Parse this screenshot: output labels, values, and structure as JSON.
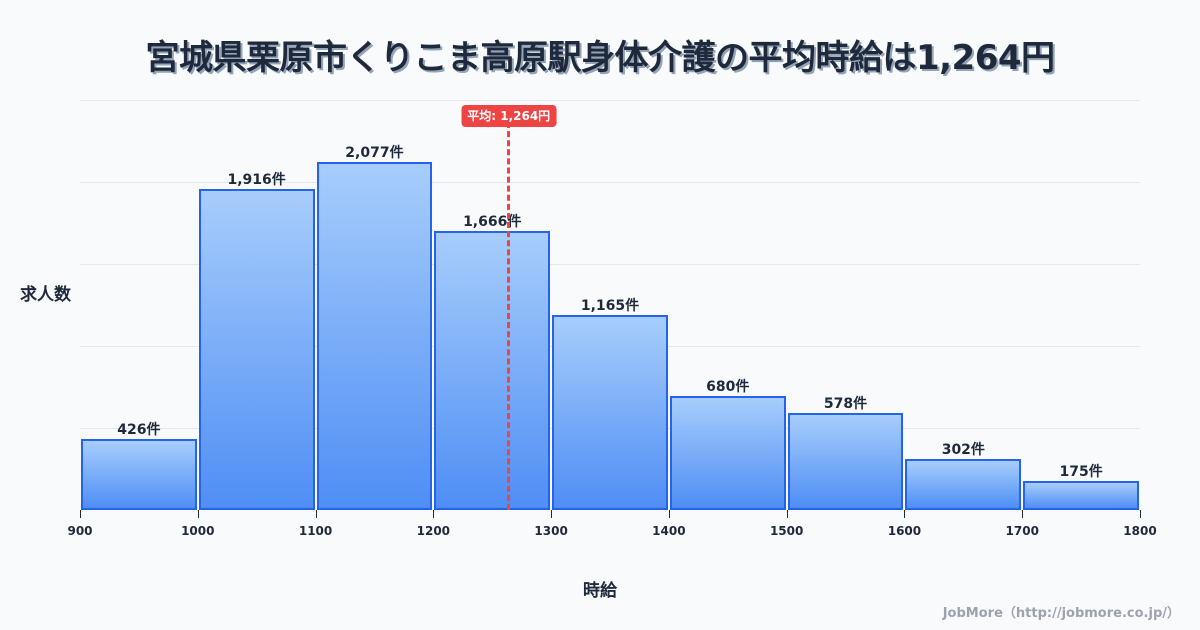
{
  "title": "宮城県栗原市くりこま高原駅身体介護の平均時給は1,264円",
  "credit": "JobMore（http://jobmore.co.jp/）",
  "chart_data": {
    "type": "bar",
    "title": "宮城県栗原市くりこま高原駅身体介護の平均時給は1,264円",
    "xlabel": "時給",
    "ylabel": "求人数",
    "bin_edges": [
      900,
      1000,
      1100,
      1200,
      1300,
      1400,
      1500,
      1600,
      1700,
      1800
    ],
    "categories": [
      "900-1000",
      "1000-1100",
      "1100-1200",
      "1200-1300",
      "1300-1400",
      "1400-1500",
      "1500-1600",
      "1600-1700",
      "1700-1800"
    ],
    "values": [
      426,
      1916,
      2077,
      1666,
      1165,
      680,
      578,
      302,
      175
    ],
    "value_labels": [
      "426件",
      "1,916件",
      "2,077件",
      "1,666件",
      "1,165件",
      "680件",
      "578件",
      "302件",
      "175件"
    ],
    "tick_labels": [
      "900",
      "1000",
      "1100",
      "1200",
      "1300",
      "1400",
      "1500",
      "1600",
      "1700",
      "1800"
    ],
    "xlim": [
      900,
      1800
    ],
    "ylim": [
      0,
      2446
    ],
    "grid": true,
    "y_tick_labels_visible": false,
    "average": {
      "value": 1264,
      "label": "平均: 1,264円",
      "color": "#ef4444"
    },
    "bar_color": "#4f8ef5",
    "bar_border_color": "#2563eb"
  }
}
